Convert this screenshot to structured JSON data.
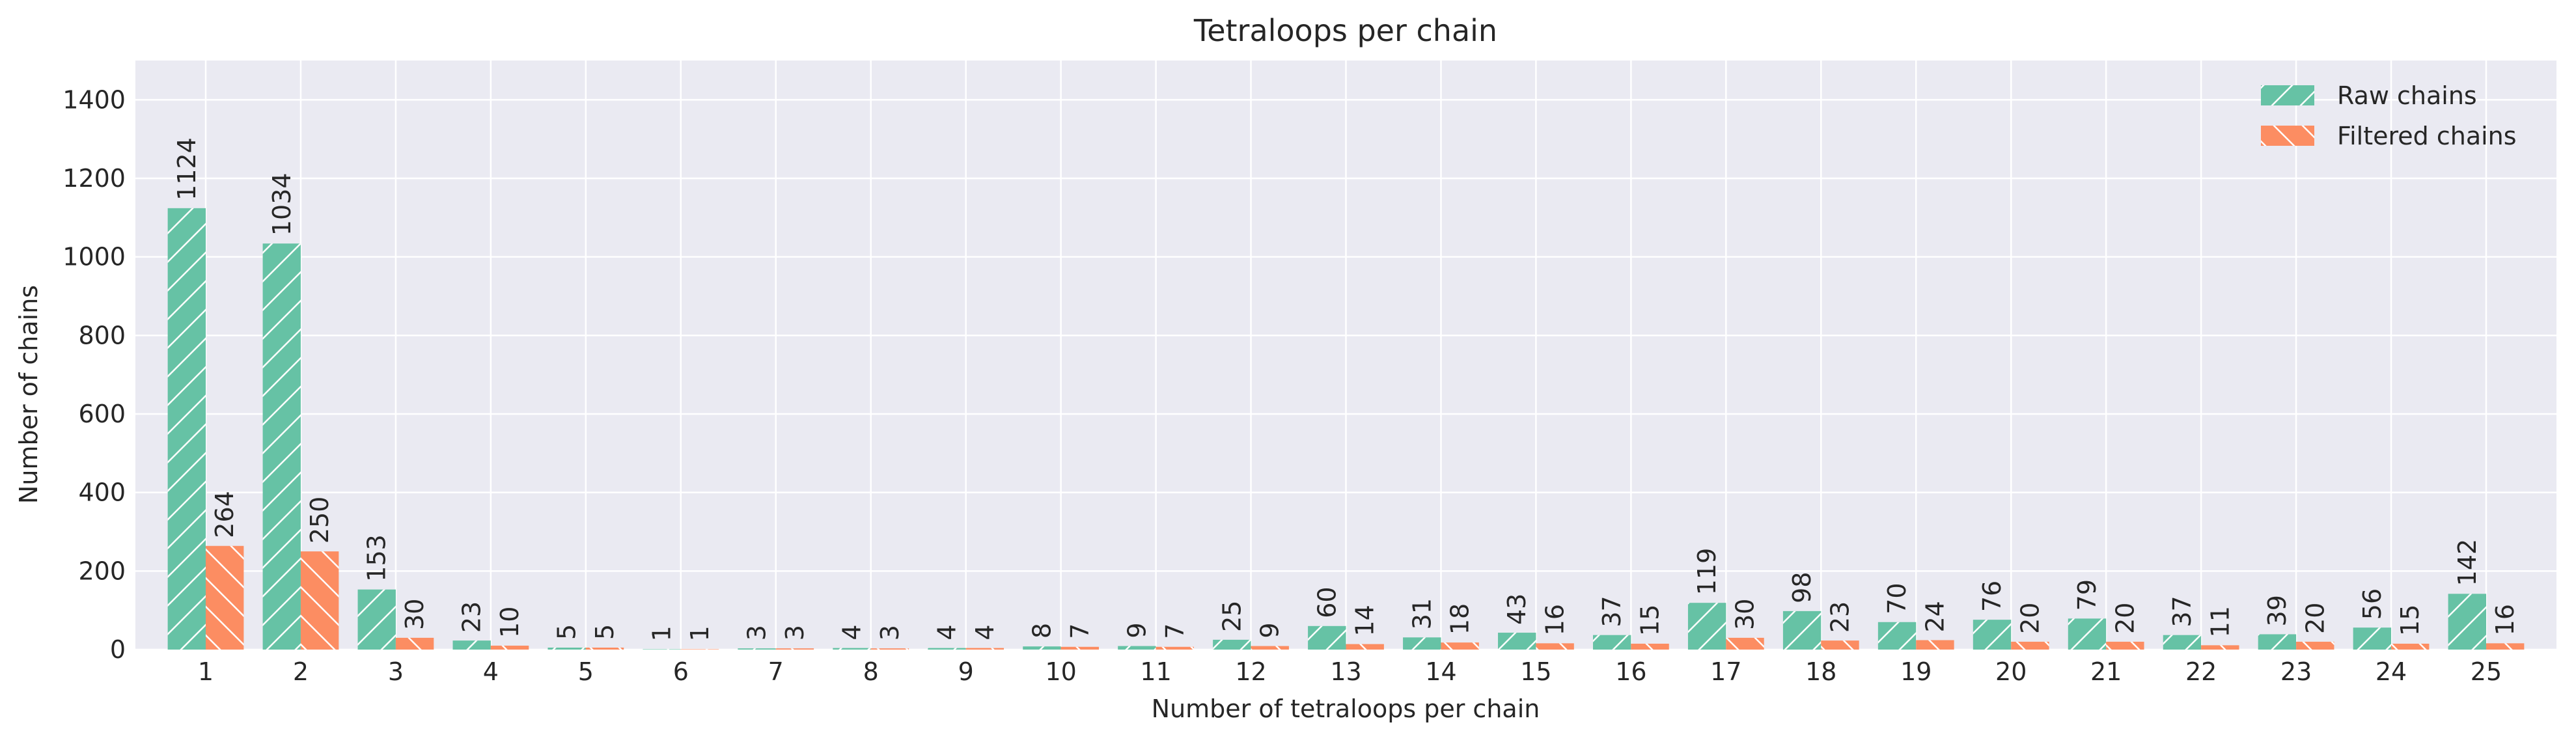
{
  "chart_data": {
    "type": "bar",
    "title": "Tetraloops per chain",
    "xlabel": "Number of tetraloops per chain",
    "ylabel": "Number of chains",
    "categories": [
      "1",
      "2",
      "3",
      "4",
      "5",
      "6",
      "7",
      "8",
      "9",
      "10",
      "11",
      "12",
      "13",
      "14",
      "15",
      "16",
      "17",
      "18",
      "19",
      "20",
      "21",
      "22",
      "23",
      "24",
      "25"
    ],
    "series": [
      {
        "name": "Raw chains",
        "color": "#66c2a5",
        "hatch": "forward-slash",
        "values": [
          1124,
          1034,
          153,
          23,
          5,
          1,
          3,
          4,
          4,
          8,
          9,
          25,
          60,
          31,
          43,
          37,
          119,
          98,
          70,
          76,
          79,
          37,
          39,
          56,
          142
        ]
      },
      {
        "name": "Filtered chains",
        "color": "#fc8d62",
        "hatch": "back-slash",
        "values": [
          264,
          250,
          30,
          10,
          5,
          1,
          3,
          3,
          4,
          7,
          7,
          9,
          14,
          18,
          16,
          15,
          30,
          23,
          24,
          20,
          20,
          11,
          20,
          15,
          16
        ]
      }
    ],
    "ylim": [
      0,
      1500
    ],
    "yticks": [
      0,
      200,
      400,
      600,
      800,
      1000,
      1200,
      1400
    ],
    "grid": true,
    "legend_position": "top-right",
    "background_color": "#eaeaf2"
  }
}
